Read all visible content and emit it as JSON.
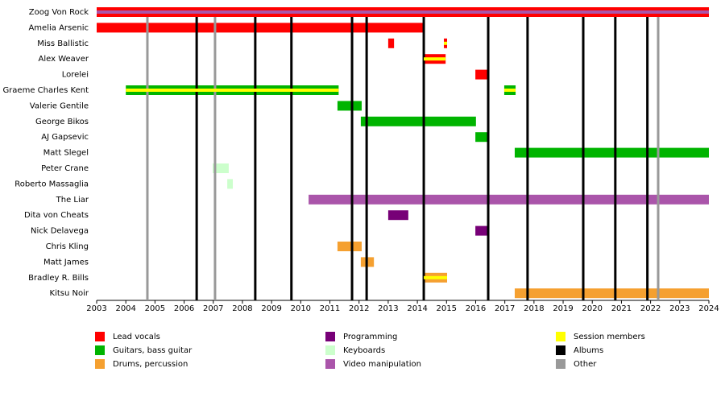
{
  "chart_data": {
    "type": "timeline",
    "categories": [
      "Zoog Von Rock",
      "Amelia Arsenic",
      "Miss Ballistic",
      "Alex Weaver",
      "Lorelei",
      "Graeme Charles Kent",
      "Valerie Gentile",
      "George Bikos",
      "AJ Gapsevic",
      "Matt Slegel",
      "Peter Crane",
      "Roberto Massaglia",
      "The Liar",
      "Dita von Cheats",
      "Nick Delavega",
      "Chris Kling",
      "Matt James",
      "Bradley R. Bills",
      "Kitsu Noir"
    ],
    "xlim": [
      2003,
      2024
    ],
    "xticks": [
      2003,
      2004,
      2005,
      2006,
      2007,
      2008,
      2009,
      2010,
      2011,
      2012,
      2013,
      2014,
      2015,
      2016,
      2017,
      2018,
      2019,
      2020,
      2021,
      2022,
      2023,
      2024
    ],
    "series": [
      {
        "name": "Lead vocals",
        "color": "#ff0000",
        "values": [
          [
            [
              2003,
              2024
            ]
          ],
          [
            [
              2003,
              2014.22
            ]
          ],
          [
            [
              2013,
              2013.2
            ],
            [
              2014.91,
              2015.02
            ]
          ],
          [
            [
              2014.22,
              2014.97
            ]
          ],
          [
            [
              2015.99,
              2016.43
            ]
          ],
          null,
          null,
          null,
          null,
          null,
          null,
          null,
          null,
          null,
          null,
          null,
          null,
          null,
          null
        ]
      },
      {
        "name": "Guitars, bass guitar",
        "color": "#00b400",
        "values": [
          null,
          null,
          null,
          null,
          null,
          [
            [
              2004,
              2011.3
            ],
            [
              2016.98,
              2017.37
            ]
          ],
          [
            [
              2011.26,
              2012.09
            ]
          ],
          [
            [
              2012.06,
              2016.01
            ]
          ],
          [
            [
              2015.99,
              2016.43
            ]
          ],
          [
            [
              2017.34,
              2024
            ]
          ],
          null,
          null,
          null,
          null,
          null,
          null,
          null,
          null,
          null
        ]
      },
      {
        "name": "Drums, percussion",
        "color": "#f5a030",
        "values": [
          null,
          null,
          null,
          null,
          null,
          null,
          null,
          null,
          null,
          null,
          null,
          null,
          null,
          null,
          null,
          [
            [
              2011.26,
              2012.09
            ]
          ],
          [
            [
              2012.06,
              2012.51
            ]
          ],
          [
            [
              2014.22,
              2015.02
            ]
          ],
          [
            [
              2017.34,
              2024
            ]
          ]
        ]
      },
      {
        "name": "Programming",
        "color": "#770077",
        "values": [
          null,
          null,
          null,
          null,
          null,
          null,
          null,
          null,
          null,
          null,
          null,
          null,
          null,
          [
            [
              2013,
              2013.69
            ]
          ],
          [
            [
              2015.99,
              2016.43
            ]
          ],
          null,
          null,
          null,
          null
        ]
      },
      {
        "name": "Keyboards",
        "color": "#ccffcc",
        "values": [
          null,
          null,
          null,
          null,
          null,
          null,
          null,
          null,
          null,
          null,
          [
            [
              2006.98,
              2007.53
            ]
          ],
          [
            [
              2007.48,
              2007.67
            ]
          ],
          null,
          null,
          null,
          null,
          null,
          null,
          null
        ]
      },
      {
        "name": "Video manipulation",
        "color": "#aa55aa",
        "values": [
          [
            {
              "start": 2003,
              "end": 2024,
              "stripe": true
            }
          ],
          null,
          null,
          null,
          null,
          null,
          null,
          null,
          null,
          null,
          null,
          null,
          [
            [
              2010.27,
              2024
            ]
          ],
          null,
          null,
          null,
          null,
          null,
          null
        ]
      },
      {
        "name": "Session members",
        "color": "#ffff00",
        "stripe": true,
        "values": [
          null,
          null,
          [
            [
              2014.91,
              2015.02
            ]
          ],
          [
            [
              2014.22,
              2014.97
            ]
          ],
          null,
          [
            [
              2004,
              2011.3
            ],
            [
              2016.98,
              2017.37
            ]
          ],
          null,
          null,
          null,
          null,
          null,
          null,
          null,
          null,
          null,
          null,
          null,
          [
            [
              2014.22,
              2015.02
            ]
          ],
          null
        ]
      },
      {
        "name": "Albums",
        "color": "#000000",
        "lines": [
          2006.43,
          2008.44,
          2009.68,
          2011.76,
          2012.26,
          2014.22,
          2016.43,
          2017.78,
          2019.69,
          2020.79,
          2021.89
        ]
      },
      {
        "name": "Other",
        "color": "#999999",
        "lines": [
          2004.74,
          2007.06,
          2022.26
        ]
      }
    ]
  }
}
